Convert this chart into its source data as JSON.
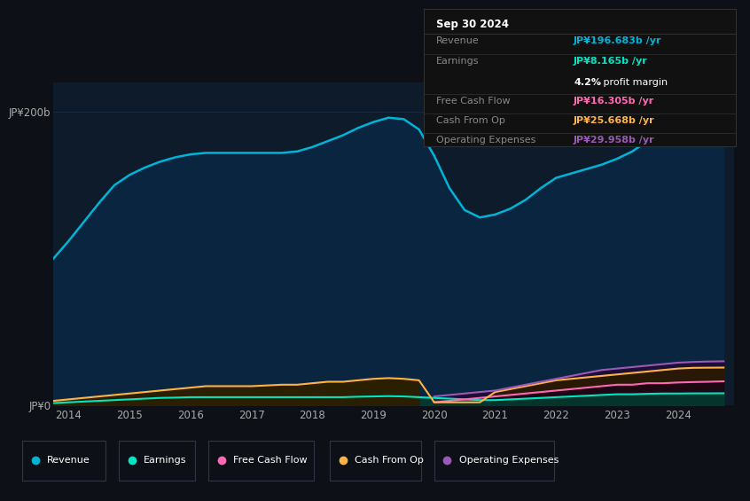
{
  "background_color": "#0d1117",
  "plot_bg_color": "#0d1b2a",
  "grid_color": "#1a2e44",
  "title_box": {
    "date": "Sep 30 2024",
    "revenue_label": "Revenue",
    "revenue_value": "JP¥196.683b /yr",
    "revenue_color": "#00b4d8",
    "earnings_label": "Earnings",
    "earnings_value": "JP¥8.165b /yr",
    "earnings_color": "#00e5c3",
    "margin_text": "4.2% profit margin",
    "margin_bold": "4.2%",
    "margin_rest": " profit margin",
    "fcf_label": "Free Cash Flow",
    "fcf_value": "JP¥16.305b /yr",
    "fcf_color": "#ff69b4",
    "cashop_label": "Cash From Op",
    "cashop_value": "JP¥25.668b /yr",
    "cashop_color": "#ffb347",
    "opex_label": "Operating Expenses",
    "opex_value": "JP¥29.958b /yr",
    "opex_color": "#9b59b6"
  },
  "years": [
    2013.75,
    2014.0,
    2014.25,
    2014.5,
    2014.75,
    2015.0,
    2015.25,
    2015.5,
    2015.75,
    2016.0,
    2016.25,
    2016.5,
    2016.75,
    2017.0,
    2017.25,
    2017.5,
    2017.75,
    2018.0,
    2018.25,
    2018.5,
    2018.75,
    2019.0,
    2019.25,
    2019.5,
    2019.75,
    2020.0,
    2020.25,
    2020.5,
    2020.75,
    2021.0,
    2021.25,
    2021.5,
    2021.75,
    2022.0,
    2022.25,
    2022.5,
    2022.75,
    2023.0,
    2023.25,
    2023.5,
    2023.75,
    2024.0,
    2024.25,
    2024.5,
    2024.75
  ],
  "revenue": [
    100,
    112,
    125,
    138,
    150,
    157,
    162,
    166,
    169,
    171,
    172,
    172,
    172,
    172,
    172,
    172,
    173,
    176,
    180,
    184,
    189,
    193,
    196,
    195,
    188,
    170,
    148,
    133,
    128,
    130,
    134,
    140,
    148,
    155,
    158,
    161,
    164,
    168,
    173,
    180,
    187,
    191,
    194,
    196,
    197
  ],
  "earnings": [
    1.5,
    2,
    2.5,
    3,
    3.5,
    4,
    4.5,
    5,
    5.2,
    5.5,
    5.5,
    5.5,
    5.5,
    5.5,
    5.5,
    5.5,
    5.5,
    5.5,
    5.5,
    5.5,
    5.8,
    6,
    6.2,
    6,
    5.5,
    5,
    4.5,
    4,
    3.5,
    3.5,
    4,
    4.5,
    5,
    5.5,
    6,
    6.5,
    7,
    7.5,
    7.5,
    7.8,
    8,
    8,
    8.1,
    8.1,
    8.165
  ],
  "free_cash_flow": [
    0,
    0,
    0,
    0,
    0,
    0,
    0,
    0,
    0,
    0,
    0,
    0,
    0,
    0,
    0,
    0,
    0,
    0,
    0,
    0,
    0,
    0,
    0,
    0,
    0,
    2,
    3,
    4,
    5,
    6,
    7,
    8,
    9,
    10,
    11,
    12,
    13,
    14,
    14,
    15,
    15,
    15.5,
    15.8,
    16,
    16.3
  ],
  "cash_from_op": [
    3,
    4,
    5,
    6,
    7,
    8,
    9,
    10,
    11,
    12,
    13,
    13,
    13,
    13,
    13.5,
    14,
    14,
    15,
    16,
    16,
    17,
    18,
    18.5,
    18,
    17,
    2,
    2,
    2,
    2,
    9,
    11,
    13,
    15,
    17,
    18,
    19,
    20,
    21,
    22,
    23,
    24,
    25,
    25.5,
    25.6,
    25.668
  ],
  "operating_expenses": [
    0,
    0,
    0,
    0,
    0,
    0,
    0,
    0,
    0,
    0,
    0,
    0,
    0,
    0,
    0,
    0,
    0,
    0,
    0,
    0,
    0,
    0,
    0,
    0,
    0,
    6,
    7,
    8,
    9,
    10,
    12,
    14,
    16,
    18,
    20,
    22,
    24,
    25,
    26,
    27,
    28,
    29,
    29.5,
    29.8,
    29.958
  ],
  "ylim": [
    0,
    220
  ],
  "y_ticks": [
    0,
    200
  ],
  "y_labels": [
    "JP¥0",
    "JP¥200b"
  ],
  "x_ticks": [
    2014,
    2015,
    2016,
    2017,
    2018,
    2019,
    2020,
    2021,
    2022,
    2023,
    2024
  ],
  "revenue_color": "#00b4d8",
  "earnings_color": "#00e5c3",
  "fcf_color": "#ff69b4",
  "cashop_color": "#ffb347",
  "opex_color": "#9b59b6",
  "legend_items": [
    "Revenue",
    "Earnings",
    "Free Cash Flow",
    "Cash From Op",
    "Operating Expenses"
  ],
  "legend_colors": [
    "#00b4d8",
    "#00e5c3",
    "#ff69b4",
    "#ffb347",
    "#9b59b6"
  ]
}
